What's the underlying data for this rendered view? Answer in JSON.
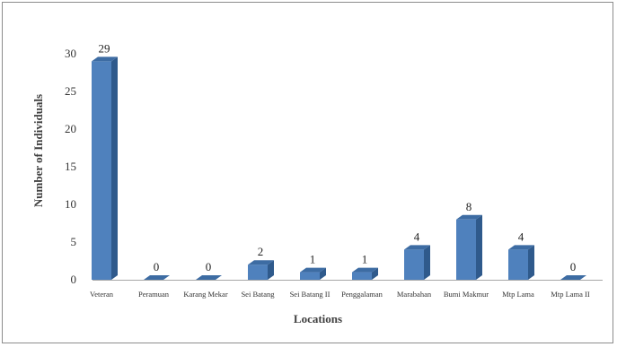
{
  "chart_data": {
    "type": "bar",
    "style": "3d-column",
    "categories": [
      "Veteran",
      "Peramuan",
      "Karang Mekar",
      "Sei Batang",
      "Sei Batang II",
      "Penggalaman",
      "Marabahan",
      "Bumi Makmur",
      "Mtp Lama",
      "Mtp Lama II"
    ],
    "values": [
      29,
      0,
      0,
      2,
      1,
      1,
      4,
      8,
      4,
      0
    ],
    "data_labels": [
      "29",
      "0",
      "0",
      "2",
      "1",
      "1",
      "4",
      "8",
      "4",
      "0"
    ],
    "title": "",
    "xlabel": "Locations",
    "ylabel": "Number  of Individuals",
    "ylim": [
      0,
      30
    ],
    "yticks": [
      "0",
      "5",
      "10",
      "15",
      "20",
      "25",
      "30"
    ],
    "grid": false,
    "legend": "none",
    "colors": {
      "bar_front": "#4f81bd",
      "bar_side": "#2f5a8c",
      "bar_top": "#3d6ca3",
      "axis_line": "#a6a6a6"
    }
  }
}
